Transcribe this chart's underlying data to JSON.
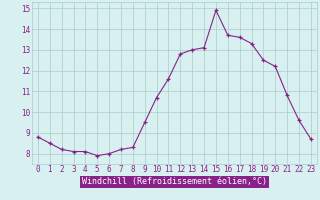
{
  "hours": [
    0,
    1,
    2,
    3,
    4,
    5,
    6,
    7,
    8,
    9,
    10,
    11,
    12,
    13,
    14,
    15,
    16,
    17,
    18,
    19,
    20,
    21,
    22,
    23
  ],
  "values": [
    8.8,
    8.5,
    8.2,
    8.1,
    8.1,
    7.9,
    8.0,
    8.2,
    8.3,
    9.5,
    10.7,
    11.6,
    12.8,
    13.0,
    13.1,
    14.9,
    13.7,
    13.6,
    13.3,
    12.5,
    12.2,
    10.8,
    9.6,
    8.7
  ],
  "line_color": "#882288",
  "marker": "+",
  "marker_size": 3,
  "bg_color": "#d8f0f0",
  "grid_color": "#aacccc",
  "ylabel_ticks": [
    8,
    9,
    10,
    11,
    12,
    13,
    14,
    15
  ],
  "xlabel": "Windchill (Refroidissement éolien,°C)",
  "xlabel_bg": "#882288",
  "xlabel_fg": "#ffffff",
  "ylim": [
    7.5,
    15.3
  ],
  "xlim": [
    -0.5,
    23.5
  ],
  "tick_fontsize": 5.5,
  "label_fontsize": 6.0
}
